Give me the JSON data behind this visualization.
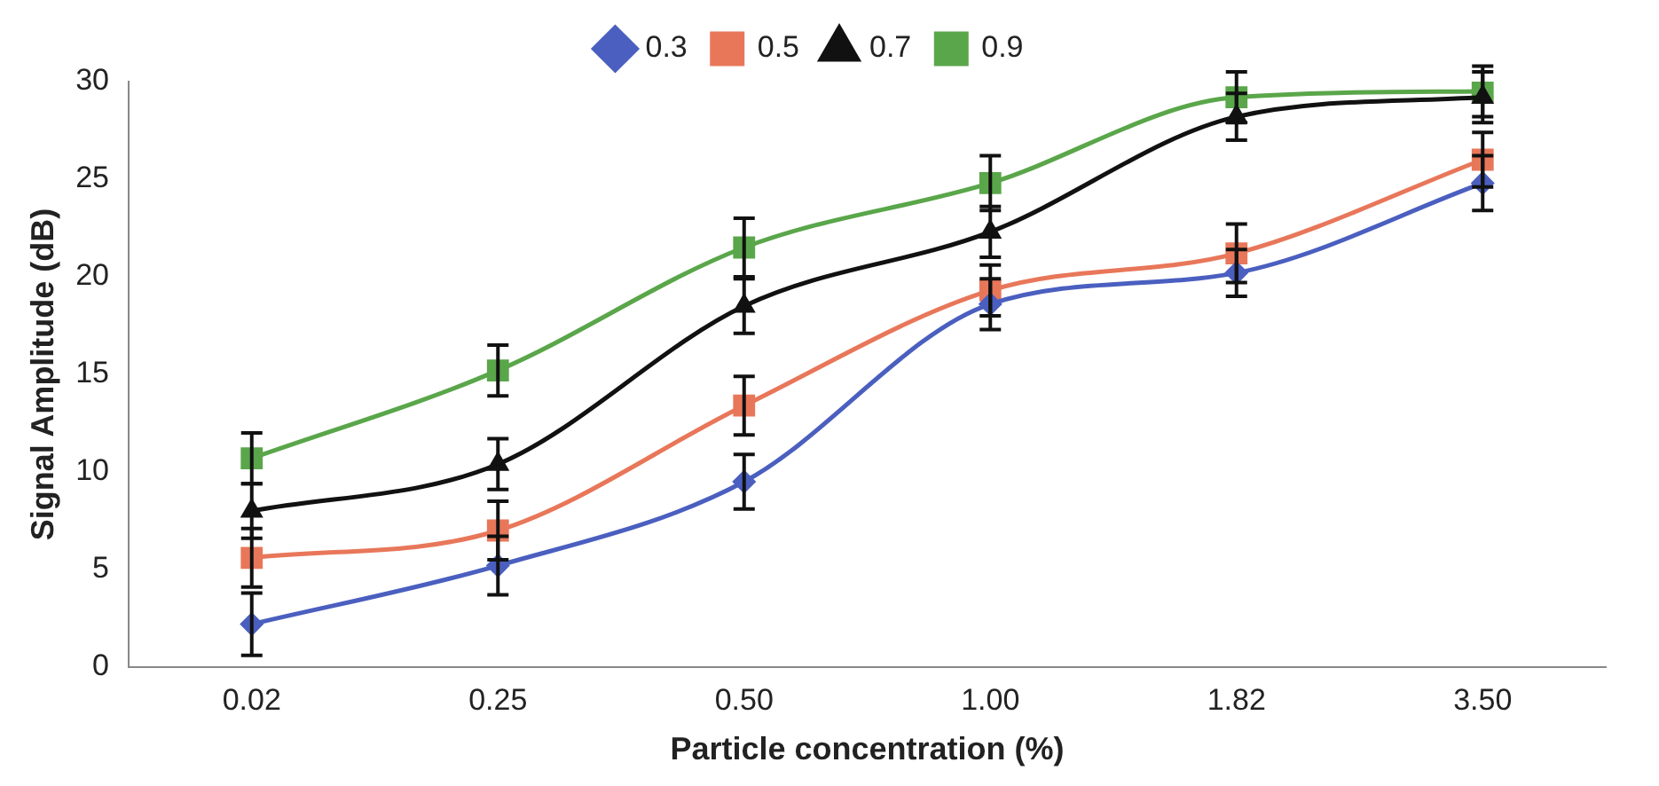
{
  "chart_data": {
    "type": "line",
    "xlabel": "Particle concentration (%)",
    "ylabel": "Signal Amplitude (dB)",
    "categories": [
      "0.02",
      "0.25",
      "0.50",
      "1.00",
      "1.82",
      "3.50"
    ],
    "series": [
      {
        "name": "0.3",
        "color": "#4a5fbf",
        "marker": "diamond",
        "values": [
          2.2,
          5.2,
          9.5,
          18.6,
          20.2,
          24.8
        ],
        "errors": [
          1.6,
          1.5,
          1.4,
          1.3,
          1.2,
          1.4
        ]
      },
      {
        "name": "0.5",
        "color": "#e8775a",
        "marker": "square",
        "values": [
          5.6,
          7.0,
          13.4,
          19.3,
          21.2,
          26.0
        ],
        "errors": [
          1.5,
          1.5,
          1.5,
          1.3,
          1.5,
          1.4
        ]
      },
      {
        "name": "0.7",
        "color": "#111111",
        "marker": "triangle",
        "values": [
          8.0,
          10.4,
          18.5,
          22.3,
          28.2,
          29.2
        ],
        "errors": [
          1.4,
          1.3,
          1.4,
          1.3,
          1.2,
          1.3
        ]
      },
      {
        "name": "0.9",
        "color": "#5aa64a",
        "marker": "square",
        "values": [
          10.7,
          15.2,
          21.5,
          24.8,
          29.2,
          29.5
        ],
        "errors": [
          1.3,
          1.3,
          1.5,
          1.4,
          1.3,
          1.3
        ]
      }
    ],
    "ylim": [
      0,
      30
    ],
    "yticks": [
      0,
      5,
      10,
      15,
      20,
      25,
      30
    ],
    "grid": false,
    "legend": "top",
    "line_style": "solid"
  }
}
